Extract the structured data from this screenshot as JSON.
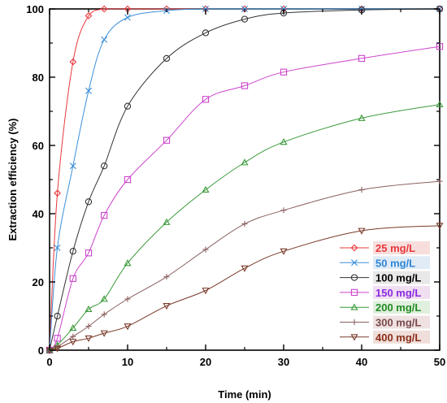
{
  "chart_data": {
    "type": "line",
    "title": "",
    "xlabel": "Time (min)",
    "ylabel": "Extraction efficiency (%)",
    "xlim": [
      0,
      50
    ],
    "ylim": [
      0,
      100
    ],
    "xticks": [
      "0",
      "10",
      "20",
      "30",
      "40",
      "50"
    ],
    "yticks": [
      "0",
      "20",
      "40",
      "60",
      "80",
      "100"
    ],
    "grid": false,
    "legend_position": "bottom-right",
    "series": [
      {
        "name": "25 mg/L",
        "color": "#e8383d",
        "marker": "diamond",
        "label_color": "#e8383d",
        "legend_bg": "#f6d8d6",
        "x": [
          0,
          1,
          3,
          5,
          7,
          10,
          15,
          20,
          25,
          30,
          40,
          50
        ],
        "y": [
          0,
          46,
          84.5,
          98,
          100,
          100,
          100,
          100,
          100,
          100,
          100,
          100
        ]
      },
      {
        "name": "50 mg/L",
        "color": "#3b8fd9",
        "marker": "x",
        "label_color": "#2f86d6",
        "legend_bg": "#dbe7f5",
        "x": [
          0,
          1,
          3,
          5,
          7,
          10,
          15,
          20,
          25,
          30,
          40,
          50
        ],
        "y": [
          0,
          30,
          54,
          76,
          91,
          97.5,
          99.5,
          100,
          100,
          100,
          100,
          100
        ]
      },
      {
        "name": "100 mg/L",
        "color": "#333333",
        "marker": "circle",
        "label_color": "#000000",
        "legend_bg": "#e4e4e4",
        "x": [
          0,
          1,
          3,
          5,
          7,
          10,
          15,
          20,
          25,
          30,
          40,
          50
        ],
        "y": [
          0,
          10,
          29,
          43.5,
          54,
          71.5,
          85.5,
          93,
          97,
          98.8,
          99.7,
          100
        ]
      },
      {
        "name": "150 mg/L",
        "color": "#cc44cc",
        "marker": "square",
        "label_color": "#8a2be2",
        "legend_bg": "#efd8ef",
        "x": [
          0,
          1,
          3,
          5,
          7,
          10,
          15,
          20,
          25,
          30,
          40,
          50
        ],
        "y": [
          0,
          3.5,
          21,
          28.5,
          39.5,
          50,
          61.5,
          73.5,
          77.5,
          81.5,
          85.5,
          89
        ]
      },
      {
        "name": "200 mg/L",
        "color": "#3a9a3a",
        "marker": "triangle",
        "label_color": "#228b22",
        "legend_bg": "#dcecd8",
        "x": [
          0,
          1,
          3,
          5,
          7,
          10,
          15,
          20,
          25,
          30,
          40,
          50
        ],
        "y": [
          0,
          1.5,
          6.5,
          12,
          15,
          25.5,
          37.5,
          47,
          55,
          61,
          68,
          72
        ]
      },
      {
        "name": "300 mg/L",
        "color": "#8b6060",
        "marker": "plus",
        "label_color": "#7a4a4a",
        "legend_bg": "#ecdcdc",
        "x": [
          0,
          1,
          3,
          5,
          7,
          10,
          15,
          20,
          25,
          30,
          40,
          50
        ],
        "y": [
          0,
          1,
          4,
          7,
          10.5,
          15,
          21.5,
          29.5,
          37,
          41,
          47,
          49.5
        ]
      },
      {
        "name": "400 mg/L",
        "color": "#7a3a2a",
        "marker": "triangle-down",
        "label_color": "#8b2e1a",
        "legend_bg": "#ecd8d4",
        "x": [
          0,
          1,
          3,
          5,
          7,
          10,
          15,
          20,
          25,
          30,
          40,
          50
        ],
        "y": [
          0,
          0.5,
          2.5,
          3.5,
          5,
          7,
          13,
          17.5,
          24,
          29,
          35,
          36.5
        ]
      }
    ]
  }
}
